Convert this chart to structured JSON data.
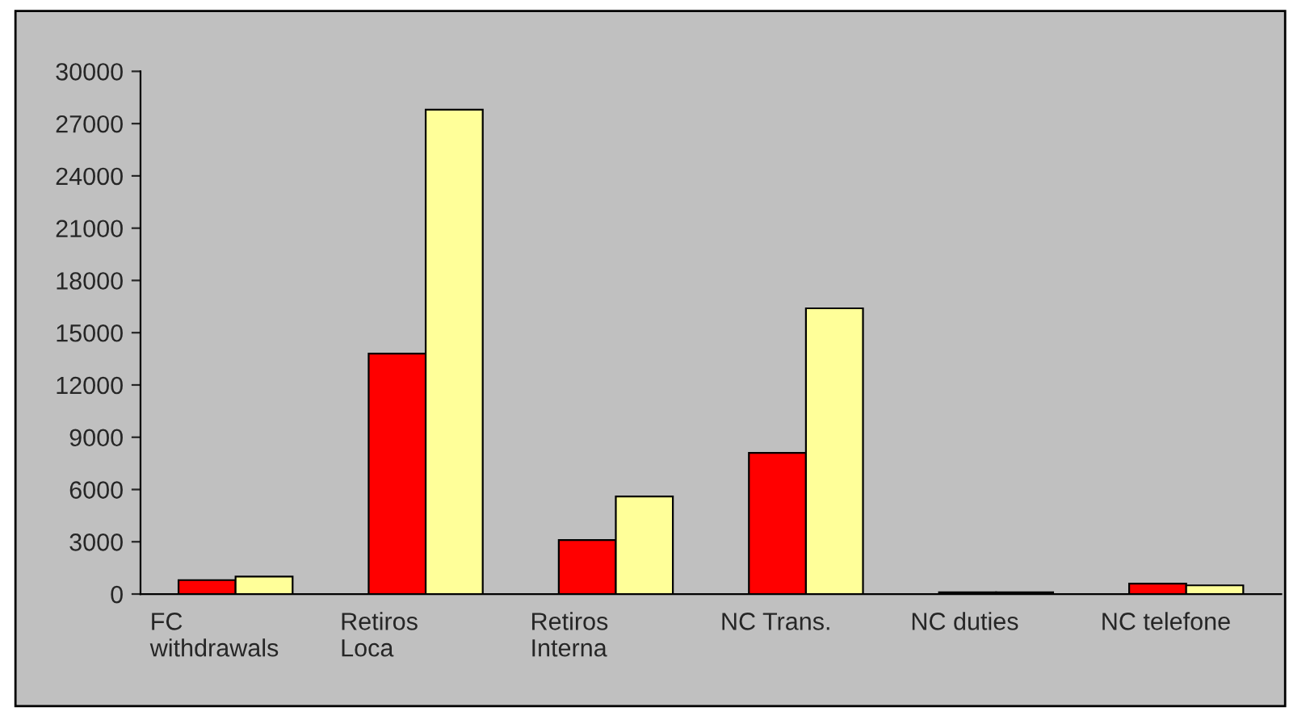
{
  "chart_data": {
    "type": "bar",
    "categories": [
      "FC\nwithdrawals",
      "Retiros\nLoca",
      "Retiros\nInterna",
      "NC Trans.",
      "NC duties",
      "NC telefone"
    ],
    "series": [
      {
        "color": "#ff0000",
        "values": [
          800,
          13800,
          3100,
          8100,
          100,
          600
        ]
      },
      {
        "color": "#ffff99",
        "values": [
          1000,
          27800,
          5600,
          16400,
          100,
          500
        ]
      }
    ],
    "ylim": [
      0,
      30000
    ],
    "yticks": [
      0,
      3000,
      6000,
      9000,
      12000,
      15000,
      18000,
      21000,
      24000,
      27000,
      30000
    ],
    "grid": false,
    "legend": false
  }
}
